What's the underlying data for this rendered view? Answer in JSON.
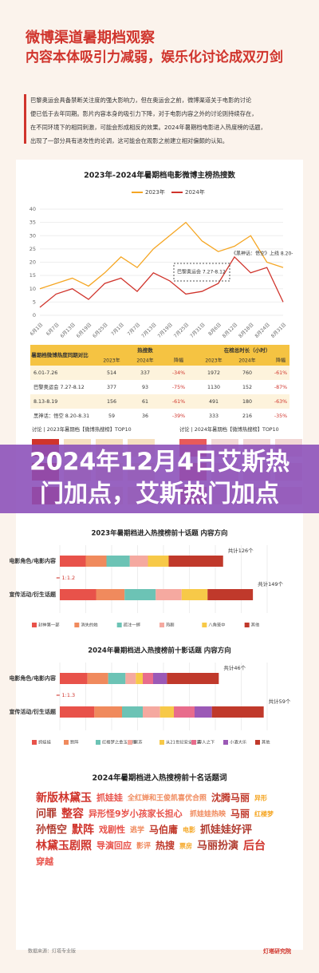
{
  "header": {
    "title_lines": [
      "微博渠道暑期档观察",
      "内容本体吸引力减弱，娱乐化讨论成双刃剑"
    ]
  },
  "intro": {
    "lines": [
      "巴黎奥运会具备禁断关注度的强大影响力，但在奥运会之前，微博渠道关于电影的讨论",
      "便已低于去年同期。影片内容本身的吸引力下降，对于电影内容之外的讨论则持续存在，",
      "在不同环境下的相同刺激，可能会形成相反的效果。2024年暑期档电影进入热度榜的话题，",
      "出现了一部分具有进攻性的论调，这可能会在观影之前建立相对偏颇的认知。"
    ]
  },
  "line_chart": {
    "type": "line",
    "title": "2023年-2024年暑期档电影微博主榜热搜数",
    "categories": [
      "6月1日",
      "6月7日",
      "6月13日",
      "6月19日",
      "6月25日",
      "7月1日",
      "7月7日",
      "7月13日",
      "7月19日",
      "7月25日",
      "7月31日",
      "8月6日",
      "8月12日",
      "8月18日",
      "8月24日",
      "8月31日"
    ],
    "series": [
      {
        "name": "2023年",
        "color": "#f5a623",
        "values": [
          10,
          12,
          14,
          11,
          16,
          22,
          18,
          25,
          30,
          35,
          28,
          24,
          26,
          30,
          20,
          18
        ]
      },
      {
        "name": "2024年",
        "color": "#d0342c",
        "values": [
          3,
          8,
          10,
          6,
          12,
          14,
          9,
          16,
          13,
          8,
          9,
          12,
          22,
          16,
          18,
          5
        ]
      }
    ],
    "ylim": [
      0,
      40
    ],
    "yticks": [
      0,
      5,
      10,
      15,
      20,
      25,
      30,
      35,
      40
    ],
    "grid": true,
    "annotations": [
      "巴黎奥运会 7.27-8.12",
      "《黑神话：悟空》上线 8.20-"
    ]
  },
  "table": {
    "title": "暑期档微博热度同期对比",
    "groups": [
      "热搜数",
      "在榜总时长（小时）"
    ],
    "subheaders": [
      "2023年",
      "2024年",
      "降幅",
      "2023年",
      "2024年",
      "降幅"
    ],
    "rows": [
      [
        "6.01-7.26",
        "514",
        "337",
        "-34%",
        "1972",
        "760",
        "-61%"
      ],
      [
        "巴黎奥运会 7.27-8.12",
        "377",
        "93",
        "-75%",
        "1130",
        "152",
        "-87%"
      ],
      [
        "8.13-8.19",
        "156",
        "61",
        "-61%",
        "491",
        "180",
        "-63%"
      ],
      [
        "黑神话：悟空 8.20-8.31",
        "59",
        "36",
        "-39%",
        "333",
        "216",
        "-35%"
      ]
    ]
  },
  "top10": {
    "left": "讨论 | 2023年暑期档【微博热搜榜】TOP10",
    "right": "讨论 | 2024年暑期档【微博热搜榜】TOP10"
  },
  "banner": {
    "lines": [
      "2024年12月4日艾斯热",
      "门加点，艾斯热门加点"
    ]
  },
  "bars2023": {
    "title": "2023年暑期档进入热搜榜前十话题 内容方向",
    "rows": [
      "电影角色/电影内容",
      "宣传活动/衍生话题"
    ],
    "totals": [
      "共计126个",
      "共计149个"
    ],
    "ratio": "≈ 1:1.2",
    "xlim": [
      0,
      160
    ],
    "series": [
      {
        "name": "封神第一部",
        "color": "#e8524a",
        "values": [
          20,
          28
        ]
      },
      {
        "name": "消失的她",
        "color": "#f08a5d",
        "values": [
          16,
          22
        ]
      },
      {
        "name": "孤注一掷",
        "color": "#6cc3b5",
        "values": [
          18,
          24
        ]
      },
      {
        "name": "热剧",
        "color": "#f5a9a0",
        "values": [
          14,
          20
        ]
      },
      {
        "name": "八角笼中",
        "color": "#f7c948",
        "values": [
          16,
          20
        ]
      },
      {
        "name": "其他",
        "color": "#c0392b",
        "values": [
          42,
          35
        ]
      }
    ]
  },
  "bars2024": {
    "title": "2024年暑期档进入热搜榜前十影话题 内容方向",
    "rows": [
      "电影角色/电影内容",
      "宣传活动/衍生话题"
    ],
    "totals": [
      "共计46个",
      "共计59个"
    ],
    "ratio": "≈ 1:1.3",
    "xlim": [
      0,
      60
    ],
    "series": [
      {
        "name": "抓娃娃",
        "color": "#e8524a",
        "values": [
          8,
          10
        ]
      },
      {
        "name": "默阵",
        "color": "#f08a5d",
        "values": [
          6,
          8
        ]
      },
      {
        "name": "红楼梦之金玉良缘",
        "color": "#6cc3b5",
        "values": [
          5,
          6
        ]
      },
      {
        "name": "紫苏",
        "color": "#f5a9a0",
        "values": [
          3,
          5
        ]
      },
      {
        "name": "从21世纪安全撤离",
        "color": "#f7c948",
        "values": [
          2,
          4
        ]
      },
      {
        "name": "异人之下",
        "color": "#e86c8c",
        "values": [
          3,
          6
        ]
      },
      {
        "name": "小酒大乐",
        "color": "#9b59b6",
        "values": [
          4,
          5
        ]
      },
      {
        "name": "其他",
        "color": "#c0392b",
        "values": [
          15,
          15
        ]
      }
    ]
  },
  "wordcloud": {
    "title": "2024年暑期档进入热搜榜前十名话题词",
    "words": [
      "新版林黛玉",
      "抓娃娃",
      "全红婵和王俊凯喜优合照",
      "沈腾马丽",
      "异形",
      "问罪",
      "整容",
      "异形怪9岁小孩家长担心",
      "抓娃娃热映",
      "马丽",
      "红楼梦",
      "孙悟空",
      "默阵",
      "戏剧性",
      "逃学",
      "马伯庸",
      "电影",
      "抓娃娃好评",
      "林黛玉剧照",
      "导演回应",
      "影评",
      "热搜",
      "票房",
      "马丽扮演",
      "后台",
      "穿越"
    ]
  },
  "footer": {
    "source": "数据来源：灯塔专业版",
    "brand": "灯塔研究院"
  }
}
